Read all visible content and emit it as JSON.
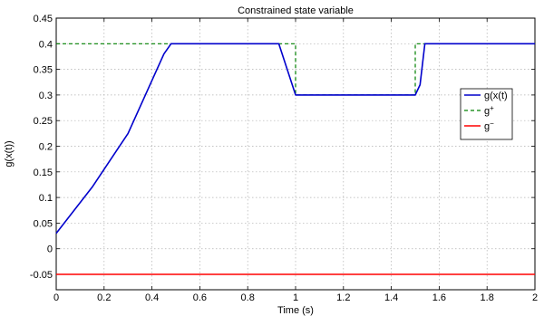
{
  "chart_data": {
    "type": "line",
    "title": "Constrained state variable",
    "xlabel": "Time (s)",
    "ylabel": "g(x(t))",
    "xlim": [
      0,
      2
    ],
    "ylim": [
      -0.08,
      0.45
    ],
    "xticks": [
      0,
      0.2,
      0.4,
      0.6,
      0.8,
      1,
      1.2,
      1.4,
      1.6,
      1.8,
      2
    ],
    "xtick_labels": [
      "0",
      "0.2",
      "0.4",
      "0.6",
      "0.8",
      "1",
      "1.2",
      "1.4",
      "1.6",
      "1.8",
      "2"
    ],
    "yticks": [
      -0.05,
      0,
      0.05,
      0.1,
      0.15,
      0.2,
      0.25,
      0.3,
      0.35,
      0.4,
      0.45
    ],
    "ytick_labels": [
      "-0.05",
      "0",
      "0.05",
      "0.1",
      "0.15",
      "0.2",
      "0.25",
      "0.3",
      "0.35",
      "0.4",
      "0.45"
    ],
    "grid": true,
    "legend_position": "right",
    "series": [
      {
        "name": "g(x(t)",
        "color": "#0000cc",
        "style": "solid",
        "x": [
          0,
          0.15,
          0.3,
          0.45,
          0.48,
          0.93,
          1.0,
          1.5,
          1.52,
          1.54,
          2.0
        ],
        "y": [
          0.03,
          0.12,
          0.225,
          0.38,
          0.4,
          0.4,
          0.3,
          0.3,
          0.32,
          0.4,
          0.4
        ]
      },
      {
        "name": "g+",
        "color": "#008000",
        "style": "dashed",
        "x": [
          0,
          1.0,
          1.0,
          1.5,
          1.5,
          2.0
        ],
        "y": [
          0.4,
          0.4,
          0.3,
          0.3,
          0.4,
          0.4
        ]
      },
      {
        "name": "g-",
        "color": "#ff0000",
        "style": "solid",
        "x": [
          0,
          2.0
        ],
        "y": [
          -0.05,
          -0.05
        ]
      }
    ],
    "legend": [
      {
        "base": "g(x(t)",
        "sup": ""
      },
      {
        "base": "g",
        "sup": "+"
      },
      {
        "base": "g",
        "sup": "−"
      }
    ]
  }
}
